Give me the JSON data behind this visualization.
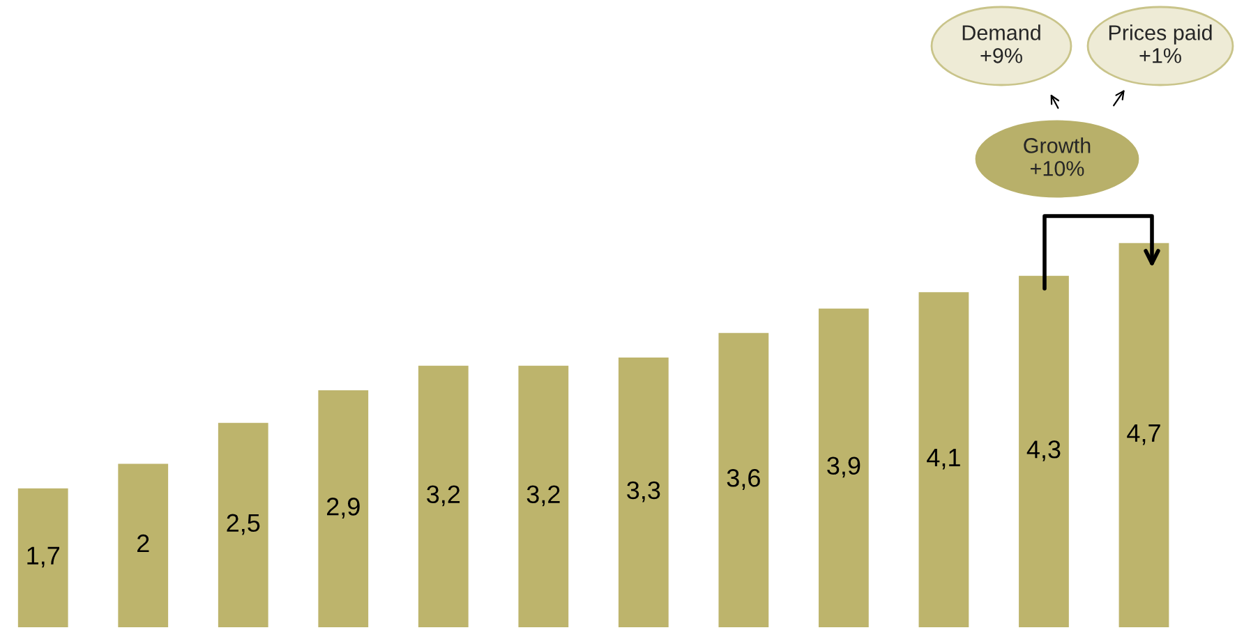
{
  "chart_data": {
    "type": "bar",
    "categories": [
      null,
      null,
      null,
      null,
      null,
      null,
      null,
      null,
      null,
      null,
      null,
      null
    ],
    "values": [
      1.7,
      2,
      2.5,
      2.9,
      3.2,
      3.2,
      3.3,
      3.6,
      3.9,
      4.1,
      4.3,
      4.7
    ],
    "value_labels": [
      "1,7",
      "2",
      "2,5",
      "2,9",
      "3,2",
      "3,2",
      "3,3",
      "3,6",
      "3,9",
      "4,1",
      "4,3",
      "4,7"
    ],
    "color": "#bdb46c",
    "annotations": [
      "Demand\n+9%",
      "Prices paid\n+1%",
      "Growth\n+10%"
    ],
    "grid": false,
    "legend": false
  }
}
